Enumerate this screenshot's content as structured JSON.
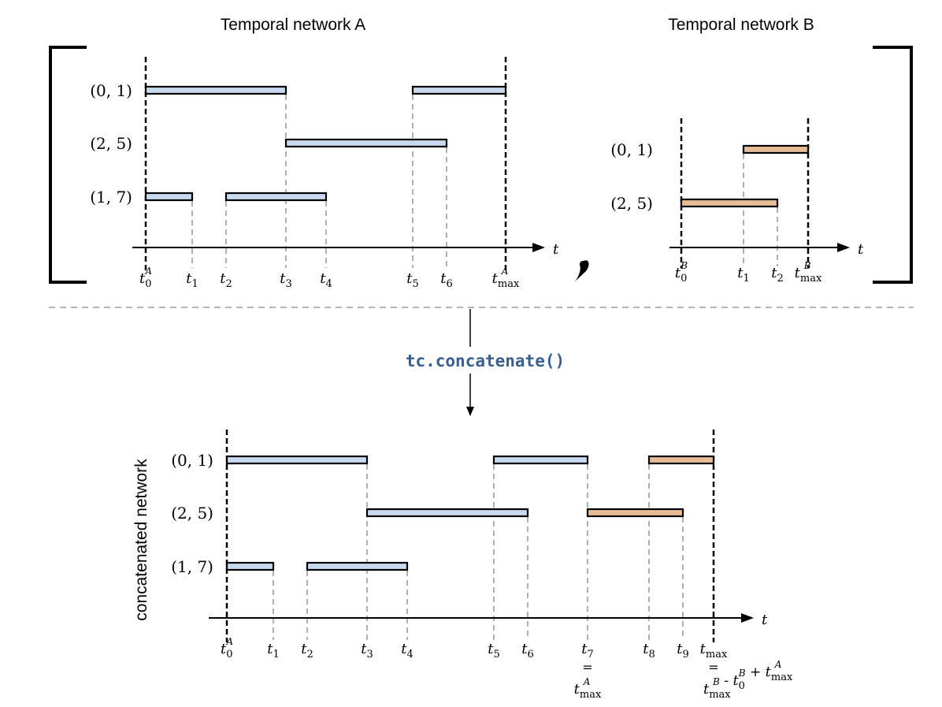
{
  "titles": {
    "network_a": "Temporal network A",
    "network_b": "Temporal network B",
    "concatenated": "concatenated network"
  },
  "function_call": "tc.concatenate()",
  "comma": ",",
  "axis_label": "t",
  "equals": "=",
  "colors": {
    "edge_a": "#c6d9ee",
    "edge_b": "#e9bd94",
    "guide": "#b0b0b0",
    "code": "#3b5f8c"
  },
  "network_a": {
    "nodes": [
      "(0, 1)",
      "(2, 5)",
      "(1, 7)"
    ],
    "ticks": [
      {
        "base": "t",
        "sub": "0",
        "sup": "A"
      },
      {
        "base": "t",
        "sub": "1"
      },
      {
        "base": "t",
        "sub": "2"
      },
      {
        "base": "t",
        "sub": "3"
      },
      {
        "base": "t",
        "sub": "4"
      },
      {
        "base": "t",
        "sub": "5"
      },
      {
        "base": "t",
        "sub": "6"
      },
      {
        "base": "t",
        "sub": "max",
        "sup": "A"
      }
    ]
  },
  "network_b": {
    "nodes": [
      "(0, 1)",
      "(2, 5)"
    ],
    "ticks": [
      {
        "base": "t",
        "sub": "0",
        "sup": "B"
      },
      {
        "base": "t",
        "sub": "1"
      },
      {
        "base": "t",
        "sub": "2"
      },
      {
        "base": "t",
        "sub": "max",
        "sup": "B"
      }
    ]
  },
  "concatenated": {
    "nodes": [
      "(0, 1)",
      "(2, 5)",
      "(1, 7)"
    ],
    "ticks": [
      {
        "base": "t",
        "sub": "0",
        "sup": "A"
      },
      {
        "base": "t",
        "sub": "1"
      },
      {
        "base": "t",
        "sub": "2"
      },
      {
        "base": "t",
        "sub": "3"
      },
      {
        "base": "t",
        "sub": "4"
      },
      {
        "base": "t",
        "sub": "5"
      },
      {
        "base": "t",
        "sub": "6"
      },
      {
        "base": "t",
        "sub": "7"
      },
      {
        "base": "t",
        "sub": "8"
      },
      {
        "base": "t",
        "sub": "9"
      },
      {
        "base": "t",
        "sub": "max"
      }
    ],
    "t7_note": {
      "base": "t",
      "sub": "max",
      "sup": "A"
    },
    "tmax_formula": [
      {
        "base": "t",
        "sub": "max",
        "sup": "B"
      },
      {
        "op": " - "
      },
      {
        "base": "t",
        "sub": "0",
        "sup": "B"
      },
      {
        "op": " + "
      },
      {
        "base": "t",
        "sub": "max",
        "sup": "A"
      }
    ]
  }
}
